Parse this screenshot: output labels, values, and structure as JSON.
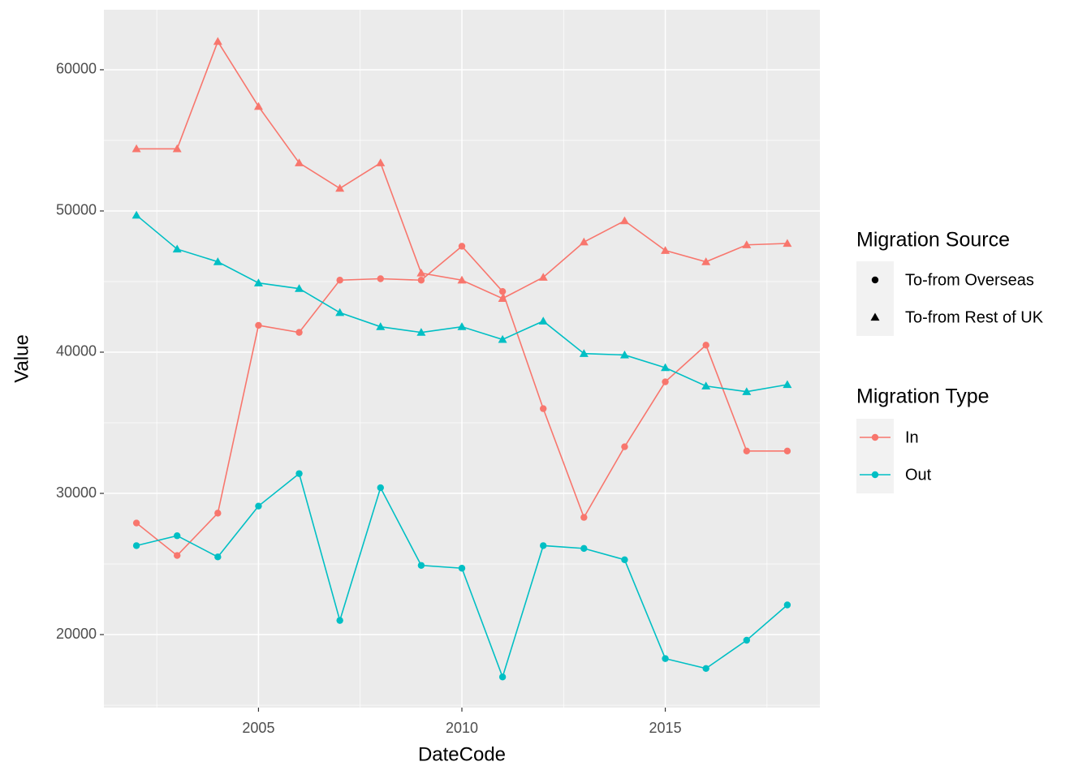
{
  "chart_data": {
    "type": "line",
    "x_label": "DateCode",
    "y_label": "Value",
    "x": [
      2002,
      2003,
      2004,
      2005,
      2006,
      2007,
      2008,
      2009,
      2010,
      2011,
      2012,
      2013,
      2014,
      2015,
      2016,
      2017,
      2018
    ],
    "xlim": [
      2001.2,
      2018.8
    ],
    "xticks": [
      2005,
      2010,
      2015
    ],
    "ylim": [
      14830,
      64250
    ],
    "yticks": [
      20000,
      30000,
      40000,
      50000,
      60000
    ],
    "grid": true,
    "color_legend_title": "Migration Type",
    "shape_legend_title": "Migration Source",
    "series": [
      {
        "name": "In",
        "source": "To-from Overseas",
        "color": "#F8766D",
        "shape": "circle",
        "values": [
          27900,
          25600,
          28600,
          41900,
          41400,
          45100,
          45200,
          45100,
          47500,
          44300,
          36000,
          28300,
          33300,
          37900,
          40500,
          33000,
          33000
        ]
      },
      {
        "name": "In",
        "source": "To-from Rest of UK",
        "color": "#F8766D",
        "shape": "triangle",
        "values": [
          54400,
          54400,
          62000,
          57400,
          53400,
          51600,
          53400,
          45600,
          45100,
          43800,
          45300,
          47800,
          49300,
          47200,
          46400,
          47600,
          47700
        ]
      },
      {
        "name": "Out",
        "source": "To-from Overseas",
        "color": "#00BFC4",
        "shape": "circle",
        "values": [
          26300,
          27000,
          25500,
          29100,
          31400,
          21000,
          30400,
          24900,
          24700,
          17000,
          26300,
          26100,
          25300,
          18300,
          17600,
          19600,
          22100
        ]
      },
      {
        "name": "Out",
        "source": "To-from Rest of UK",
        "color": "#00BFC4",
        "shape": "triangle",
        "values": [
          49700,
          47300,
          46400,
          44900,
          44500,
          42800,
          41800,
          41400,
          41800,
          40900,
          42200,
          39900,
          39800,
          38900,
          37600,
          37200,
          37700
        ]
      }
    ]
  }
}
